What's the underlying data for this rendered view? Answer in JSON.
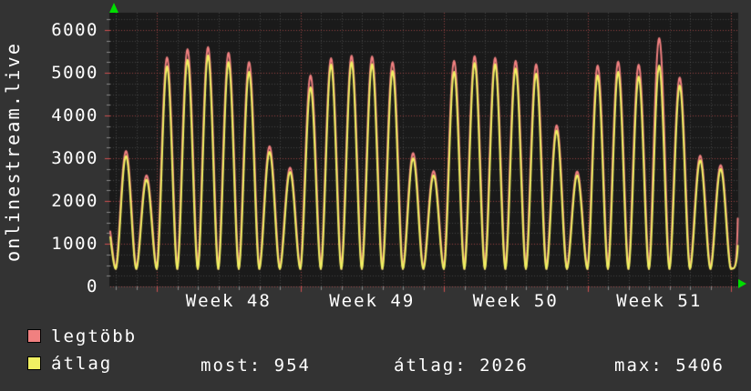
{
  "colors": {
    "background": "#333333",
    "plot_background": "#1a1a1a",
    "grid_minor": "rgba(150,150,150,0.35)",
    "grid_major": "rgba(235,90,90,0.60)",
    "tick_minor": "#8a8a8a",
    "tick_major": "#d05050",
    "text": "#ffffff",
    "arrow": "#00dd00",
    "series_legtobb": "#f08080",
    "series_atlag": "#f0f062"
  },
  "legend": {
    "items": [
      {
        "label": "legtöbb",
        "color": "#f08080"
      },
      {
        "label": "átlag",
        "color": "#f0f062"
      }
    ]
  },
  "stats_row": [
    {
      "label": "most:",
      "value": "954"
    },
    {
      "label": "átlag:",
      "value": "2026"
    },
    {
      "label": "max:",
      "value": "5406"
    }
  ],
  "chart_data": {
    "type": "line",
    "title": "onlinestream.live",
    "x_axis": {
      "labels": [
        "Week 48",
        "Week 49",
        "Week 50",
        "Week 51"
      ],
      "unit": "week",
      "days_shown": 30,
      "week_starts_at_day_index": 2
    },
    "y_axis": {
      "ticks": [
        0,
        1000,
        2000,
        3000,
        4000,
        5000,
        6000
      ],
      "minor_step": 250,
      "max_displayed": 6400,
      "grid": true
    },
    "valley": 410,
    "pre_peak": {
      "legtobb": 1800,
      "atlag": 1700
    },
    "series": [
      {
        "name": "legtöbb",
        "color": "#f08080",
        "daily_peaks": [
          3170,
          2600,
          5360,
          5550,
          5600,
          5470,
          5250,
          3280,
          2780,
          4940,
          5340,
          5400,
          5380,
          5250,
          3120,
          2700,
          5280,
          5390,
          5350,
          5280,
          5200,
          3770,
          2690,
          5170,
          5260,
          5190,
          5810,
          4890,
          3060,
          2840
        ]
      },
      {
        "name": "átlag",
        "color": "#f0f062",
        "daily_peaks": [
          3050,
          2500,
          5150,
          5300,
          5406,
          5250,
          5020,
          3150,
          2680,
          4660,
          5190,
          5250,
          5200,
          5040,
          3000,
          2600,
          5020,
          5230,
          5200,
          5100,
          4980,
          3650,
          2600,
          4940,
          5020,
          4910,
          5170,
          4700,
          2950,
          2750
        ]
      }
    ],
    "end_values": {
      "legtobb": 1590,
      "atlag": 954
    },
    "stats": {
      "most": 954,
      "atlag": 2026,
      "max": 5406
    },
    "legend_position": "bottom-left"
  }
}
